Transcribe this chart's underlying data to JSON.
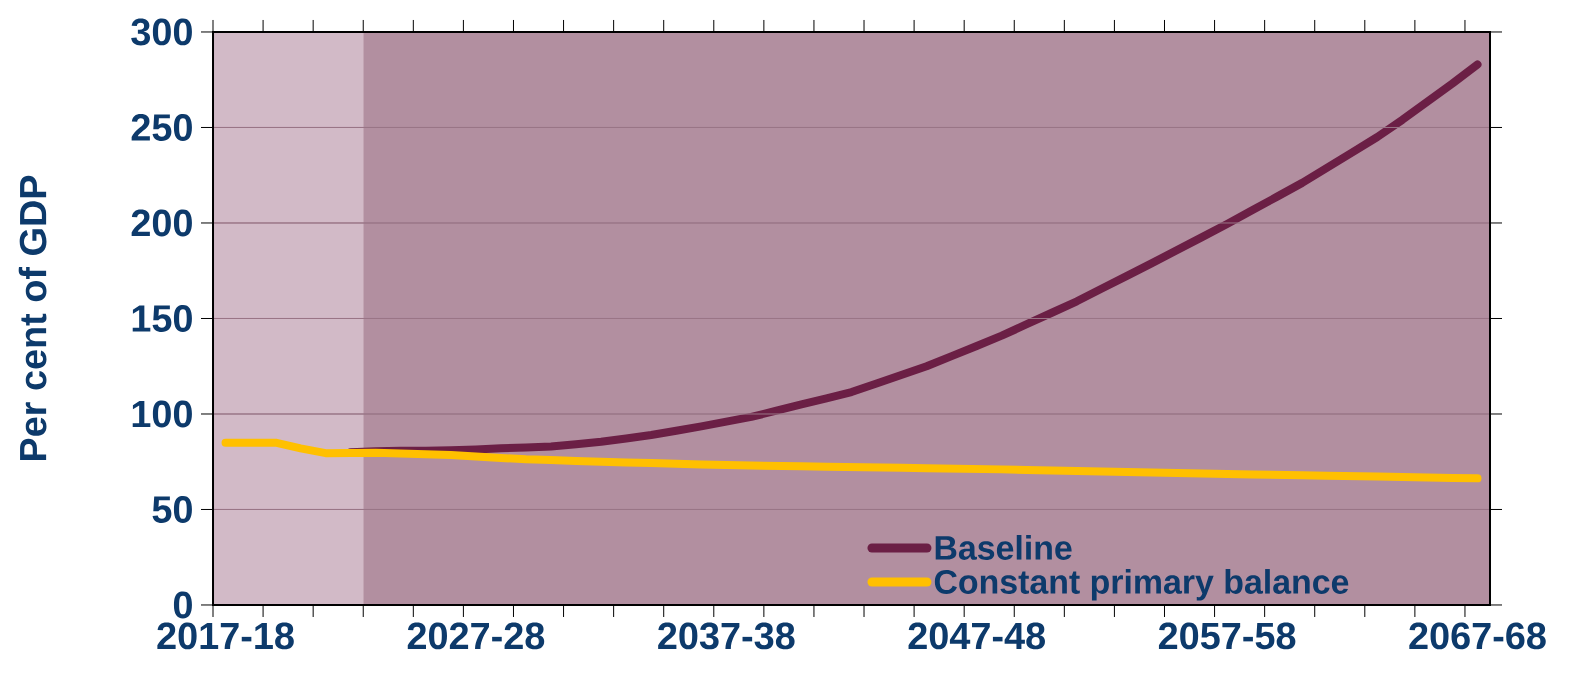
{
  "chart_data": {
    "type": "line",
    "ylabel": "Per cent of GDP",
    "categories": [
      "2017-18",
      null,
      null,
      null,
      null,
      null,
      null,
      null,
      null,
      null,
      "2027-28",
      null,
      null,
      null,
      null,
      null,
      null,
      null,
      null,
      null,
      "2037-38",
      null,
      null,
      null,
      null,
      null,
      null,
      null,
      null,
      null,
      "2047-48",
      null,
      null,
      null,
      null,
      null,
      null,
      null,
      null,
      null,
      "2057-58",
      null,
      null,
      null,
      null,
      null,
      null,
      null,
      null,
      null,
      "2067-68"
    ],
    "ylim": [
      0,
      300
    ],
    "yticks": [
      0,
      50,
      100,
      150,
      200,
      250,
      300
    ],
    "grid": "y",
    "legend": "bottom right",
    "line_style": "solid",
    "series": [
      {
        "name": "Baseline",
        "color": "#6b1f45",
        "values": [
          null,
          null,
          null,
          null,
          null,
          80,
          80.5,
          80.7,
          80.8,
          81,
          81.4,
          82,
          82.5,
          83,
          84.2,
          85.5,
          87.2,
          89,
          91.2,
          93.5,
          96,
          98.5,
          101.7,
          105,
          108.2,
          111.5,
          116,
          120.5,
          125,
          130.3,
          135.6,
          141,
          147,
          153,
          159,
          165.7,
          172.3,
          179,
          185.8,
          192.6,
          199.5,
          206.7,
          213.8,
          221,
          229,
          237,
          245,
          254,
          263.5,
          273,
          283
        ]
      },
      {
        "name": "Constant primary balance",
        "color": "#ffc000",
        "values": [
          85,
          85,
          85,
          82,
          79.5,
          79.6,
          79.7,
          79.3,
          78.9,
          78.5,
          77.8,
          77,
          76.3,
          75.9,
          75.4,
          75,
          74.6,
          74.3,
          74,
          73.6,
          73.3,
          73,
          72.8,
          72.6,
          72.4,
          72.2,
          72,
          71.8,
          71.6,
          71.4,
          71.2,
          71,
          70.7,
          70.4,
          70.2,
          69.9,
          69.6,
          69.4,
          69.1,
          68.8,
          68.6,
          68.3,
          68.1,
          67.9,
          67.7,
          67.5,
          67.3,
          67,
          66.8,
          66.5,
          66.3
        ]
      }
    ]
  }
}
